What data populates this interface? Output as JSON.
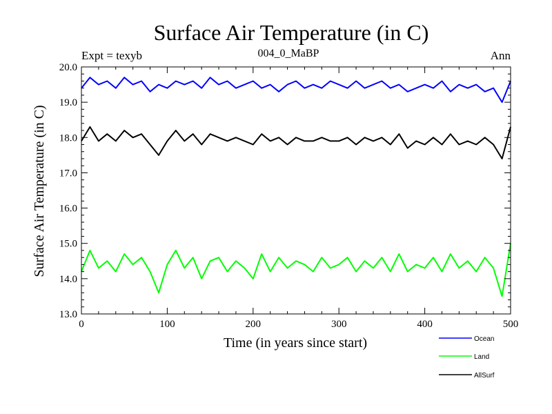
{
  "chart_data": {
    "type": "line",
    "title": "Surface Air Temperature (in C)",
    "subtitle": "004_0_MaBP",
    "left_label": "Expt = texyb",
    "right_label": "Ann",
    "xlabel": "Time (in years since start)",
    "ylabel": "Surface Air Temperature (in C)",
    "xlim": [
      0,
      500
    ],
    "ylim": [
      13.0,
      20.0
    ],
    "x_ticks": [
      0,
      100,
      200,
      300,
      400,
      500
    ],
    "x_tick_labels": [
      "0",
      "100",
      "200",
      "300",
      "400",
      "500"
    ],
    "y_ticks": [
      13,
      14,
      15,
      16,
      17,
      18,
      19,
      20
    ],
    "y_tick_labels": [
      "13.0",
      "14.0",
      "15.0",
      "16.0",
      "17.0",
      "18.0",
      "19.0",
      "20.0"
    ],
    "grid": false,
    "legend_position": "bottom-right, below plot",
    "x": [
      0,
      10,
      20,
      30,
      40,
      50,
      60,
      70,
      80,
      90,
      100,
      110,
      120,
      130,
      140,
      150,
      160,
      170,
      180,
      190,
      200,
      210,
      220,
      230,
      240,
      250,
      260,
      270,
      280,
      290,
      300,
      310,
      320,
      330,
      340,
      350,
      360,
      370,
      380,
      390,
      400,
      410,
      420,
      430,
      440,
      450,
      460,
      470,
      480,
      490,
      500
    ],
    "series": [
      {
        "name": "Ocean",
        "color": "#0000ff",
        "values": [
          19.4,
          19.7,
          19.5,
          19.6,
          19.4,
          19.7,
          19.5,
          19.6,
          19.3,
          19.5,
          19.4,
          19.6,
          19.5,
          19.6,
          19.4,
          19.7,
          19.5,
          19.6,
          19.4,
          19.5,
          19.6,
          19.4,
          19.5,
          19.3,
          19.5,
          19.6,
          19.4,
          19.5,
          19.4,
          19.6,
          19.5,
          19.4,
          19.6,
          19.4,
          19.5,
          19.6,
          19.4,
          19.5,
          19.3,
          19.4,
          19.5,
          19.4,
          19.6,
          19.3,
          19.5,
          19.4,
          19.5,
          19.3,
          19.4,
          19.0,
          19.6
        ]
      },
      {
        "name": "Land",
        "color": "#00ff00",
        "values": [
          14.2,
          14.8,
          14.3,
          14.5,
          14.2,
          14.7,
          14.4,
          14.6,
          14.2,
          13.6,
          14.4,
          14.8,
          14.3,
          14.6,
          14.0,
          14.5,
          14.6,
          14.2,
          14.5,
          14.3,
          14.0,
          14.7,
          14.2,
          14.6,
          14.3,
          14.5,
          14.4,
          14.2,
          14.6,
          14.3,
          14.4,
          14.6,
          14.2,
          14.5,
          14.3,
          14.6,
          14.2,
          14.7,
          14.2,
          14.4,
          14.3,
          14.6,
          14.2,
          14.7,
          14.3,
          14.5,
          14.2,
          14.6,
          14.3,
          13.5,
          15.0
        ]
      },
      {
        "name": "AllSurf",
        "color": "#000000",
        "values": [
          17.9,
          18.3,
          17.9,
          18.1,
          17.9,
          18.2,
          18.0,
          18.1,
          17.8,
          17.5,
          17.9,
          18.2,
          17.9,
          18.1,
          17.8,
          18.1,
          18.0,
          17.9,
          18.0,
          17.9,
          17.8,
          18.1,
          17.9,
          18.0,
          17.8,
          18.0,
          17.9,
          17.9,
          18.0,
          17.9,
          17.9,
          18.0,
          17.8,
          18.0,
          17.9,
          18.0,
          17.8,
          18.1,
          17.7,
          17.9,
          17.8,
          18.0,
          17.8,
          18.1,
          17.8,
          17.9,
          17.8,
          18.0,
          17.8,
          17.4,
          18.3
        ]
      }
    ]
  }
}
